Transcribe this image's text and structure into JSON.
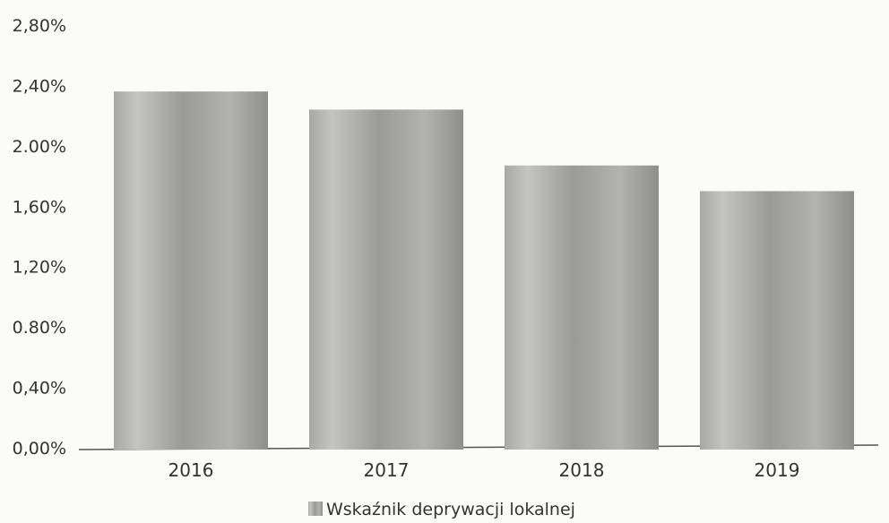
{
  "chart_data": {
    "type": "bar",
    "categories": [
      "2016",
      "2017",
      "2018",
      "2019"
    ],
    "series": [
      {
        "name": "Wskaźnik deprywacji lokalnej",
        "values": [
          2.36,
          2.24,
          1.87,
          1.7
        ]
      }
    ],
    "y_ticks": [
      "0,00%",
      "0,40%",
      "0.80%",
      "1,20%",
      "1,60%",
      "2.00%",
      "2,40%",
      "2,80%"
    ],
    "ylim": [
      0,
      2.8
    ],
    "title": "",
    "xlabel": "",
    "ylabel": "",
    "grid": false,
    "legend_position": "bottom-center",
    "bar_color": "#9c9c9a",
    "bar_color_dark": "#7f7f7d",
    "bar_color_light": "#c2c2c0",
    "axis_color": "#555555"
  }
}
